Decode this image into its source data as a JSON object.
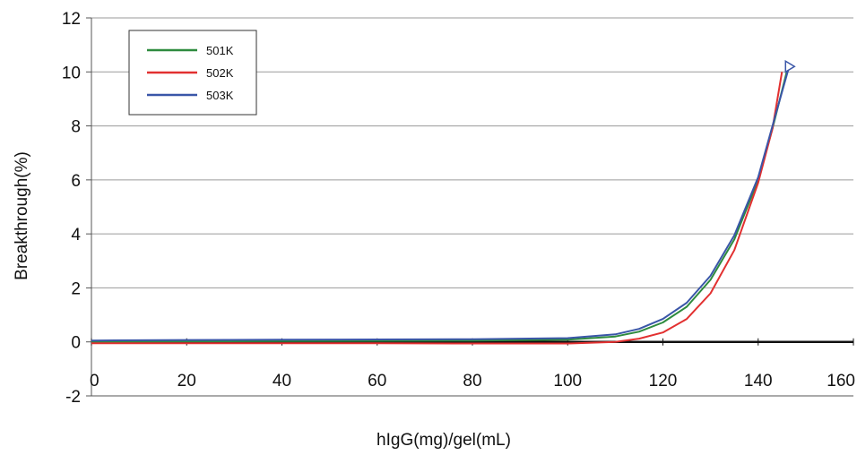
{
  "chart_data": {
    "type": "line",
    "xlabel": "hIgG(mg)/gel(mL)",
    "ylabel": "Breakthrough(%)",
    "xlim": [
      0,
      160
    ],
    "ylim": [
      -2,
      12
    ],
    "x_ticks": [
      "0",
      "20",
      "40",
      "60",
      "80",
      "100",
      "120",
      "140",
      "160"
    ],
    "y_ticks": [
      "-2",
      "0",
      "2",
      "4",
      "6",
      "8",
      "10",
      "12"
    ],
    "grid": "horizontal",
    "legend_position": "top-left",
    "series": [
      {
        "name": "501K",
        "color": "#2e8b3e",
        "points": [
          [
            0,
            0.0
          ],
          [
            20,
            0.02
          ],
          [
            40,
            0.03
          ],
          [
            60,
            0.04
          ],
          [
            80,
            0.05
          ],
          [
            100,
            0.08
          ],
          [
            110,
            0.2
          ],
          [
            115,
            0.38
          ],
          [
            120,
            0.72
          ],
          [
            125,
            1.3
          ],
          [
            130,
            2.3
          ],
          [
            135,
            3.8
          ],
          [
            140,
            6.0
          ],
          [
            143,
            7.9
          ],
          [
            146,
            10.0
          ]
        ]
      },
      {
        "name": "502K",
        "color": "#e23030",
        "points": [
          [
            0,
            -0.05
          ],
          [
            20,
            -0.05
          ],
          [
            40,
            -0.05
          ],
          [
            60,
            -0.05
          ],
          [
            80,
            -0.06
          ],
          [
            100,
            -0.06
          ],
          [
            110,
            0.0
          ],
          [
            115,
            0.12
          ],
          [
            120,
            0.35
          ],
          [
            125,
            0.85
          ],
          [
            130,
            1.8
          ],
          [
            135,
            3.4
          ],
          [
            140,
            5.9
          ],
          [
            143,
            7.9
          ],
          [
            145,
            10.0
          ]
        ]
      },
      {
        "name": "503K",
        "color": "#3a56a8",
        "points": [
          [
            0,
            0.05
          ],
          [
            20,
            0.07
          ],
          [
            40,
            0.08
          ],
          [
            60,
            0.09
          ],
          [
            80,
            0.1
          ],
          [
            100,
            0.14
          ],
          [
            110,
            0.28
          ],
          [
            115,
            0.48
          ],
          [
            120,
            0.85
          ],
          [
            125,
            1.45
          ],
          [
            130,
            2.45
          ],
          [
            135,
            3.95
          ],
          [
            140,
            6.1
          ],
          [
            143,
            8.0
          ],
          [
            146.5,
            10.2
          ]
        ]
      }
    ]
  }
}
